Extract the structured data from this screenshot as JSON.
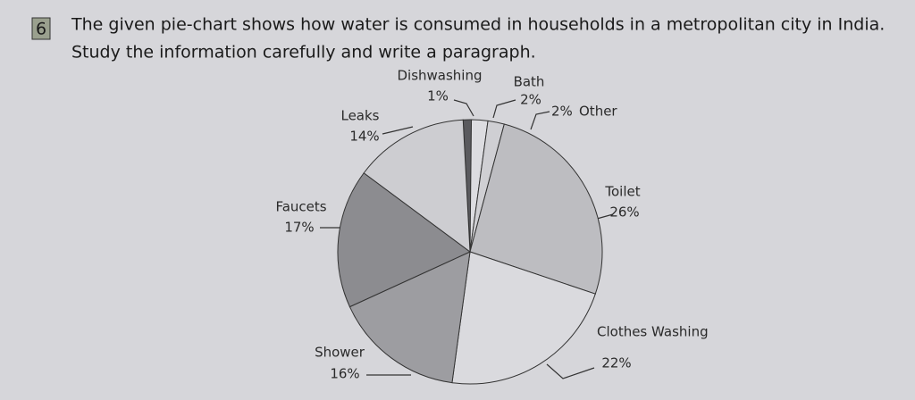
{
  "question": {
    "number": "6",
    "lines": [
      "The given pie-chart shows how water is consumed in households in a metropolitan city in India.",
      "Study the information carefully and write a paragraph."
    ]
  },
  "chart_data": {
    "type": "pie",
    "categories": [
      "Dishwashing",
      "Bath",
      "Other",
      "Toilet",
      "Clothes Washing",
      "Shower",
      "Faucets",
      "Leaks"
    ],
    "values": [
      1,
      2,
      2,
      26,
      22,
      16,
      17,
      14
    ],
    "value_labels": [
      "1%",
      "2%",
      "2%",
      "26%",
      "22%",
      "16%",
      "17%",
      "14%"
    ],
    "colors": [
      "#5a5a5e",
      "#dcdce0",
      "#cfcfd3",
      "#bdbdc1",
      "#dadade",
      "#9d9da1",
      "#8c8c90",
      "#cdcdd1"
    ]
  }
}
